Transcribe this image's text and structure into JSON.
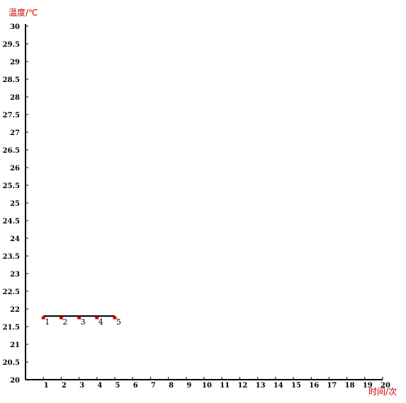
{
  "chart_data": {
    "type": "line",
    "title": "",
    "xlabel": "时间/次",
    "ylabel": "温度/℃",
    "xlim": [
      0,
      20
    ],
    "ylim": [
      20,
      30
    ],
    "x_ticks": [
      "1",
      "2",
      "3",
      "4",
      "5",
      "6",
      "7",
      "8",
      "9",
      "10",
      "11",
      "12",
      "13",
      "14",
      "15",
      "16",
      "17",
      "18",
      "19",
      "20"
    ],
    "y_ticks": [
      "20",
      "20.5",
      "21",
      "21.5",
      "22",
      "22.5",
      "23",
      "23.5",
      "24",
      "24.5",
      "25",
      "25.5",
      "26",
      "26.5",
      "27",
      "27.5",
      "28",
      "28.5",
      "29",
      "29.5",
      "30"
    ],
    "grid": false,
    "series": [
      {
        "x": [
          1,
          2,
          3,
          4,
          5
        ],
        "y": [
          21.8,
          21.8,
          21.8,
          21.8,
          21.8
        ],
        "point_labels": [
          "1",
          "2",
          "3",
          "4",
          "5"
        ],
        "line_color": "#000000",
        "marker_color": "#cc0000"
      }
    ]
  }
}
